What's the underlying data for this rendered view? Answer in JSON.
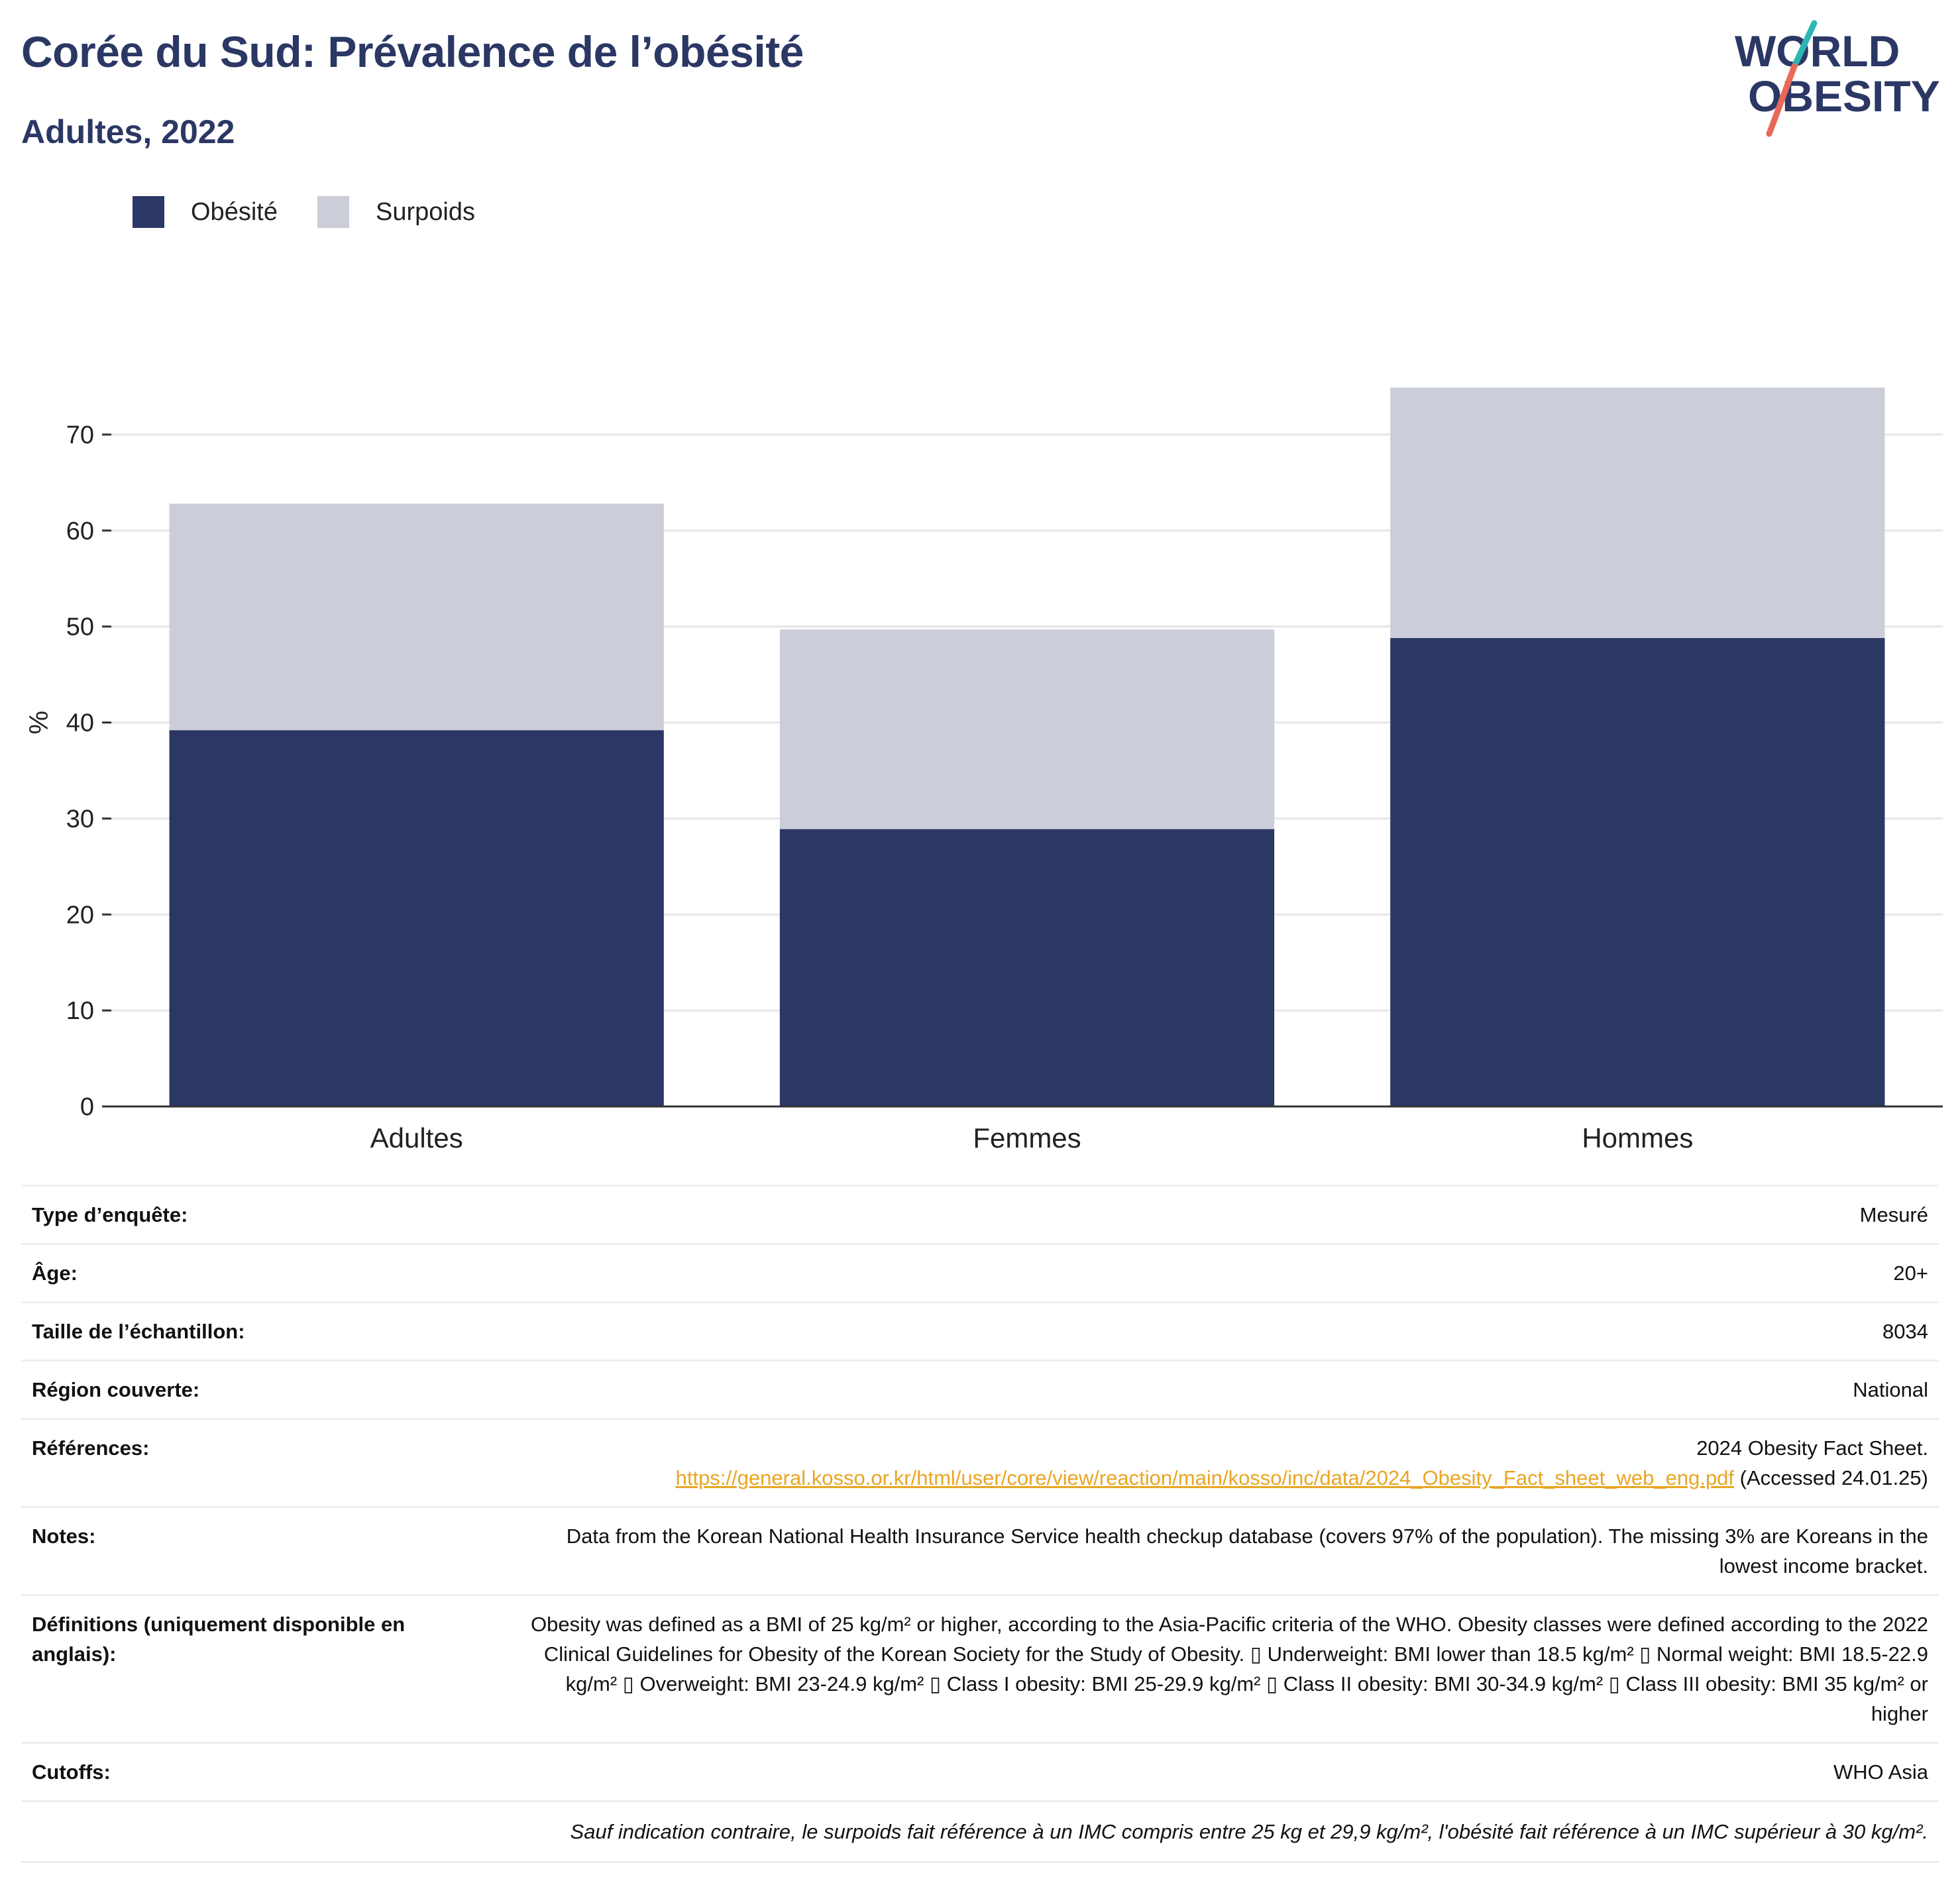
{
  "header": {
    "title": "Corée du Sud: Prévalence de l’obésité",
    "subtitle": "Adultes, 2022"
  },
  "logo": {
    "line1": "WORLD",
    "line2": "OBESITY",
    "accent_teal": "#2bb6b3",
    "accent_coral": "#e8685a"
  },
  "colors": {
    "obesity": "#2b3764",
    "overweight": "#cbcdd8",
    "brand": "#2b3764",
    "link": "#e8a623"
  },
  "chart_data": {
    "type": "bar",
    "stacked": true,
    "categories": [
      "Adultes",
      "Femmes",
      "Hommes"
    ],
    "series": [
      {
        "name": "Obésité",
        "values": [
          39.2,
          28.9,
          48.8
        ]
      },
      {
        "name": "Surpoids",
        "values": [
          23.6,
          20.8,
          26.1
        ]
      }
    ],
    "totals": [
      62.8,
      49.7,
      74.9
    ],
    "ylabel": "%",
    "ylim": [
      0,
      78
    ],
    "yticks": [
      0,
      10,
      20,
      30,
      40,
      50,
      60,
      70
    ],
    "grid": true,
    "legend_position": "top-left"
  },
  "table": {
    "rows": [
      {
        "label": "Type d’enquête:",
        "value": "Mesuré"
      },
      {
        "label": "Âge:",
        "value": "20+"
      },
      {
        "label": "Taille de l’échantillon:",
        "value": "8034"
      },
      {
        "label": "Région couverte:",
        "value": "National"
      }
    ],
    "references": {
      "label": "Références:",
      "text1": "2024 Obesity Fact Sheet.",
      "link": "https://general.kosso.or.kr/html/user/core/view/reaction/main/kosso/inc/data/2024_Obesity_Fact_sheet_web_eng.pdf",
      "text2": " (Accessed 24.01.25)"
    },
    "notes": {
      "label": "Notes:",
      "value": "Data from the Korean National Health Insurance Service health checkup database (covers 97% of the population). The missing 3% are Koreans in the lowest income bracket."
    },
    "definitions": {
      "label": "Définitions (uniquement disponible en anglais):",
      "value": "Obesity was defined as a BMI of 25 kg/m² or higher, according to the Asia-Pacific criteria of the WHO. Obesity classes were defined according to the 2022 Clinical Guidelines for Obesity of the Korean Society for the Study of Obesity. ▯ Underweight: BMI lower than 18.5 kg/m² ▯ Normal weight: BMI 18.5-22.9 kg/m² ▯ Overweight: BMI 23-24.9 kg/m² ▯ Class I obesity: BMI 25-29.9 kg/m² ▯ Class II obesity: BMI 30-34.9 kg/m² ▯ Class III obesity: BMI 35 kg/m² or higher"
    },
    "cutoffs": {
      "label": "Cutoffs:",
      "value": "WHO Asia"
    },
    "footnote": "Sauf indication contraire, le surpoids fait référence à un IMC compris entre 25 kg et 29,9 kg/m², l'obésité fait référence à un IMC supérieur à 30 kg/m²."
  }
}
